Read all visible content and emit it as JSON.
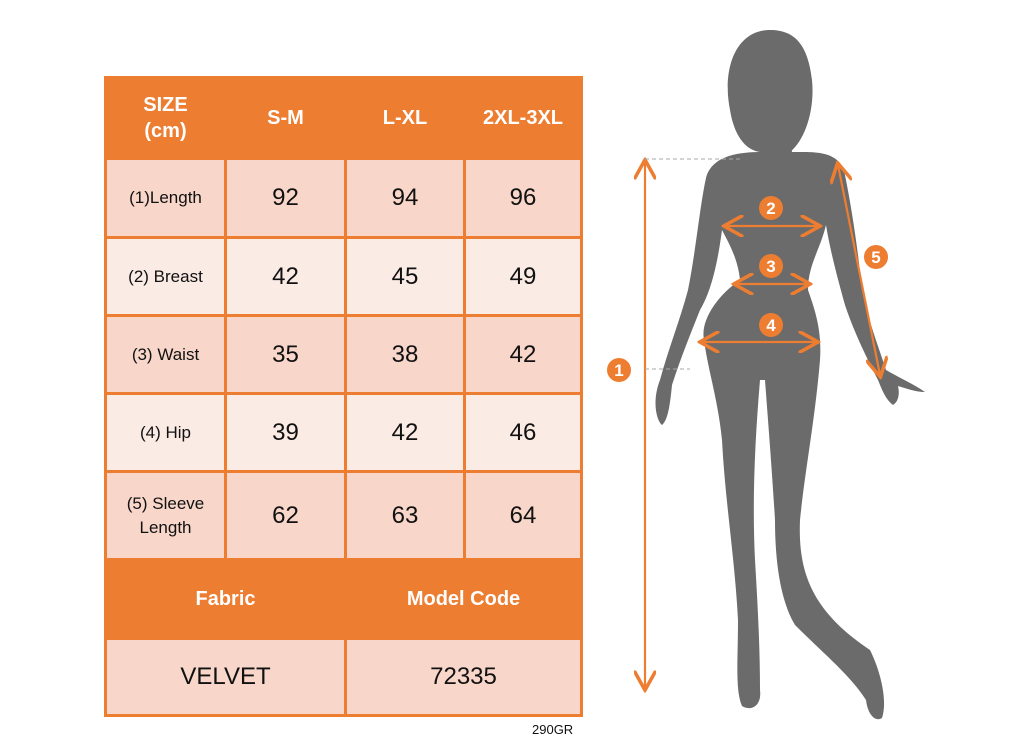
{
  "colors": {
    "accent": "#ed7d31",
    "row_dark": "#f8d6ca",
    "row_light": "#fbebe5",
    "silhouette": "#6b6b6b"
  },
  "table": {
    "header": {
      "size_label_line1": "SIZE",
      "size_label_line2": "(cm)",
      "sizes": [
        "S-M",
        "L-XL",
        "2XL-3XL"
      ]
    },
    "rows": [
      {
        "label": "(1)Length",
        "values": [
          "92",
          "94",
          "96"
        ]
      },
      {
        "label": "(2) Breast",
        "values": [
          "42",
          "45",
          "49"
        ]
      },
      {
        "label": "(3) Waist",
        "values": [
          "35",
          "38",
          "42"
        ]
      },
      {
        "label": "(4) Hip",
        "values": [
          "39",
          "42",
          "46"
        ]
      },
      {
        "label_line1": "(5) Sleeve",
        "label_line2": "Length",
        "values": [
          "62",
          "63",
          "64"
        ]
      }
    ],
    "footer": {
      "fabric_label": "Fabric",
      "model_code_label": "Model Code",
      "fabric": "VELVET",
      "model_code": "72335"
    }
  },
  "weight": "290GR",
  "figure": {
    "markers": [
      "1",
      "2",
      "3",
      "4",
      "5"
    ]
  }
}
